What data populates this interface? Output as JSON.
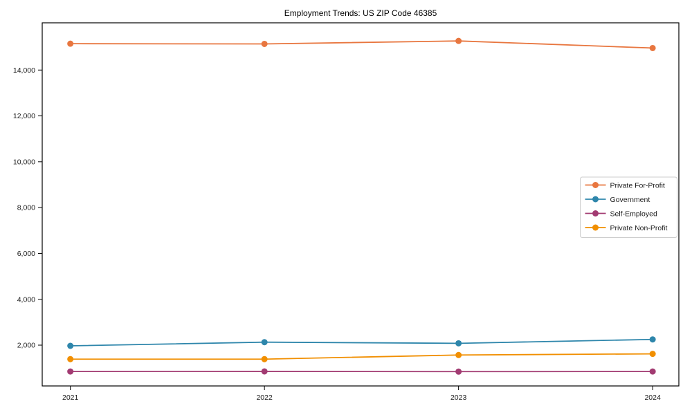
{
  "figure": {
    "background": "#ffffff"
  },
  "chart_data": {
    "type": "line",
    "title": "Employment Trends: US ZIP Code 46385",
    "xlabel": "",
    "ylabel": "",
    "x": [
      2021,
      2022,
      2023,
      2024
    ],
    "x_tick_labels": [
      "2021",
      "2022",
      "2023",
      "2024"
    ],
    "series": [
      {
        "name": "Private For-Profit",
        "color": "#E8763F",
        "values": [
          15150,
          15140,
          15270,
          14960
        ]
      },
      {
        "name": "Government",
        "color": "#2E86AB",
        "values": [
          1970,
          2130,
          2080,
          2250
        ]
      },
      {
        "name": "Self-Employed",
        "color": "#A23B72",
        "values": [
          850,
          855,
          845,
          850
        ]
      },
      {
        "name": "Private Non-Profit",
        "color": "#F18F01",
        "values": [
          1390,
          1390,
          1570,
          1620
        ]
      }
    ],
    "y_ticks": [
      2000,
      4000,
      6000,
      8000,
      10000,
      12000,
      14000
    ],
    "y_tick_labels": [
      "2,000",
      "4,000",
      "6,000",
      "8,000",
      "10,000",
      "12,000",
      "14,000"
    ],
    "xlim": [
      2020.855,
      2024.135
    ],
    "ylim": [
      220,
      16060
    ],
    "grid": false,
    "legend_position": "center right",
    "legend": [
      "Private For-Profit",
      "Government",
      "Self-Employed",
      "Private Non-Profit"
    ],
    "styles": {
      "spine_color": "#000000",
      "tick_color": "#000000",
      "text_color": "#1a1a1a",
      "legend_border": "#cccccc",
      "legend_bg": "#ffffff"
    }
  }
}
